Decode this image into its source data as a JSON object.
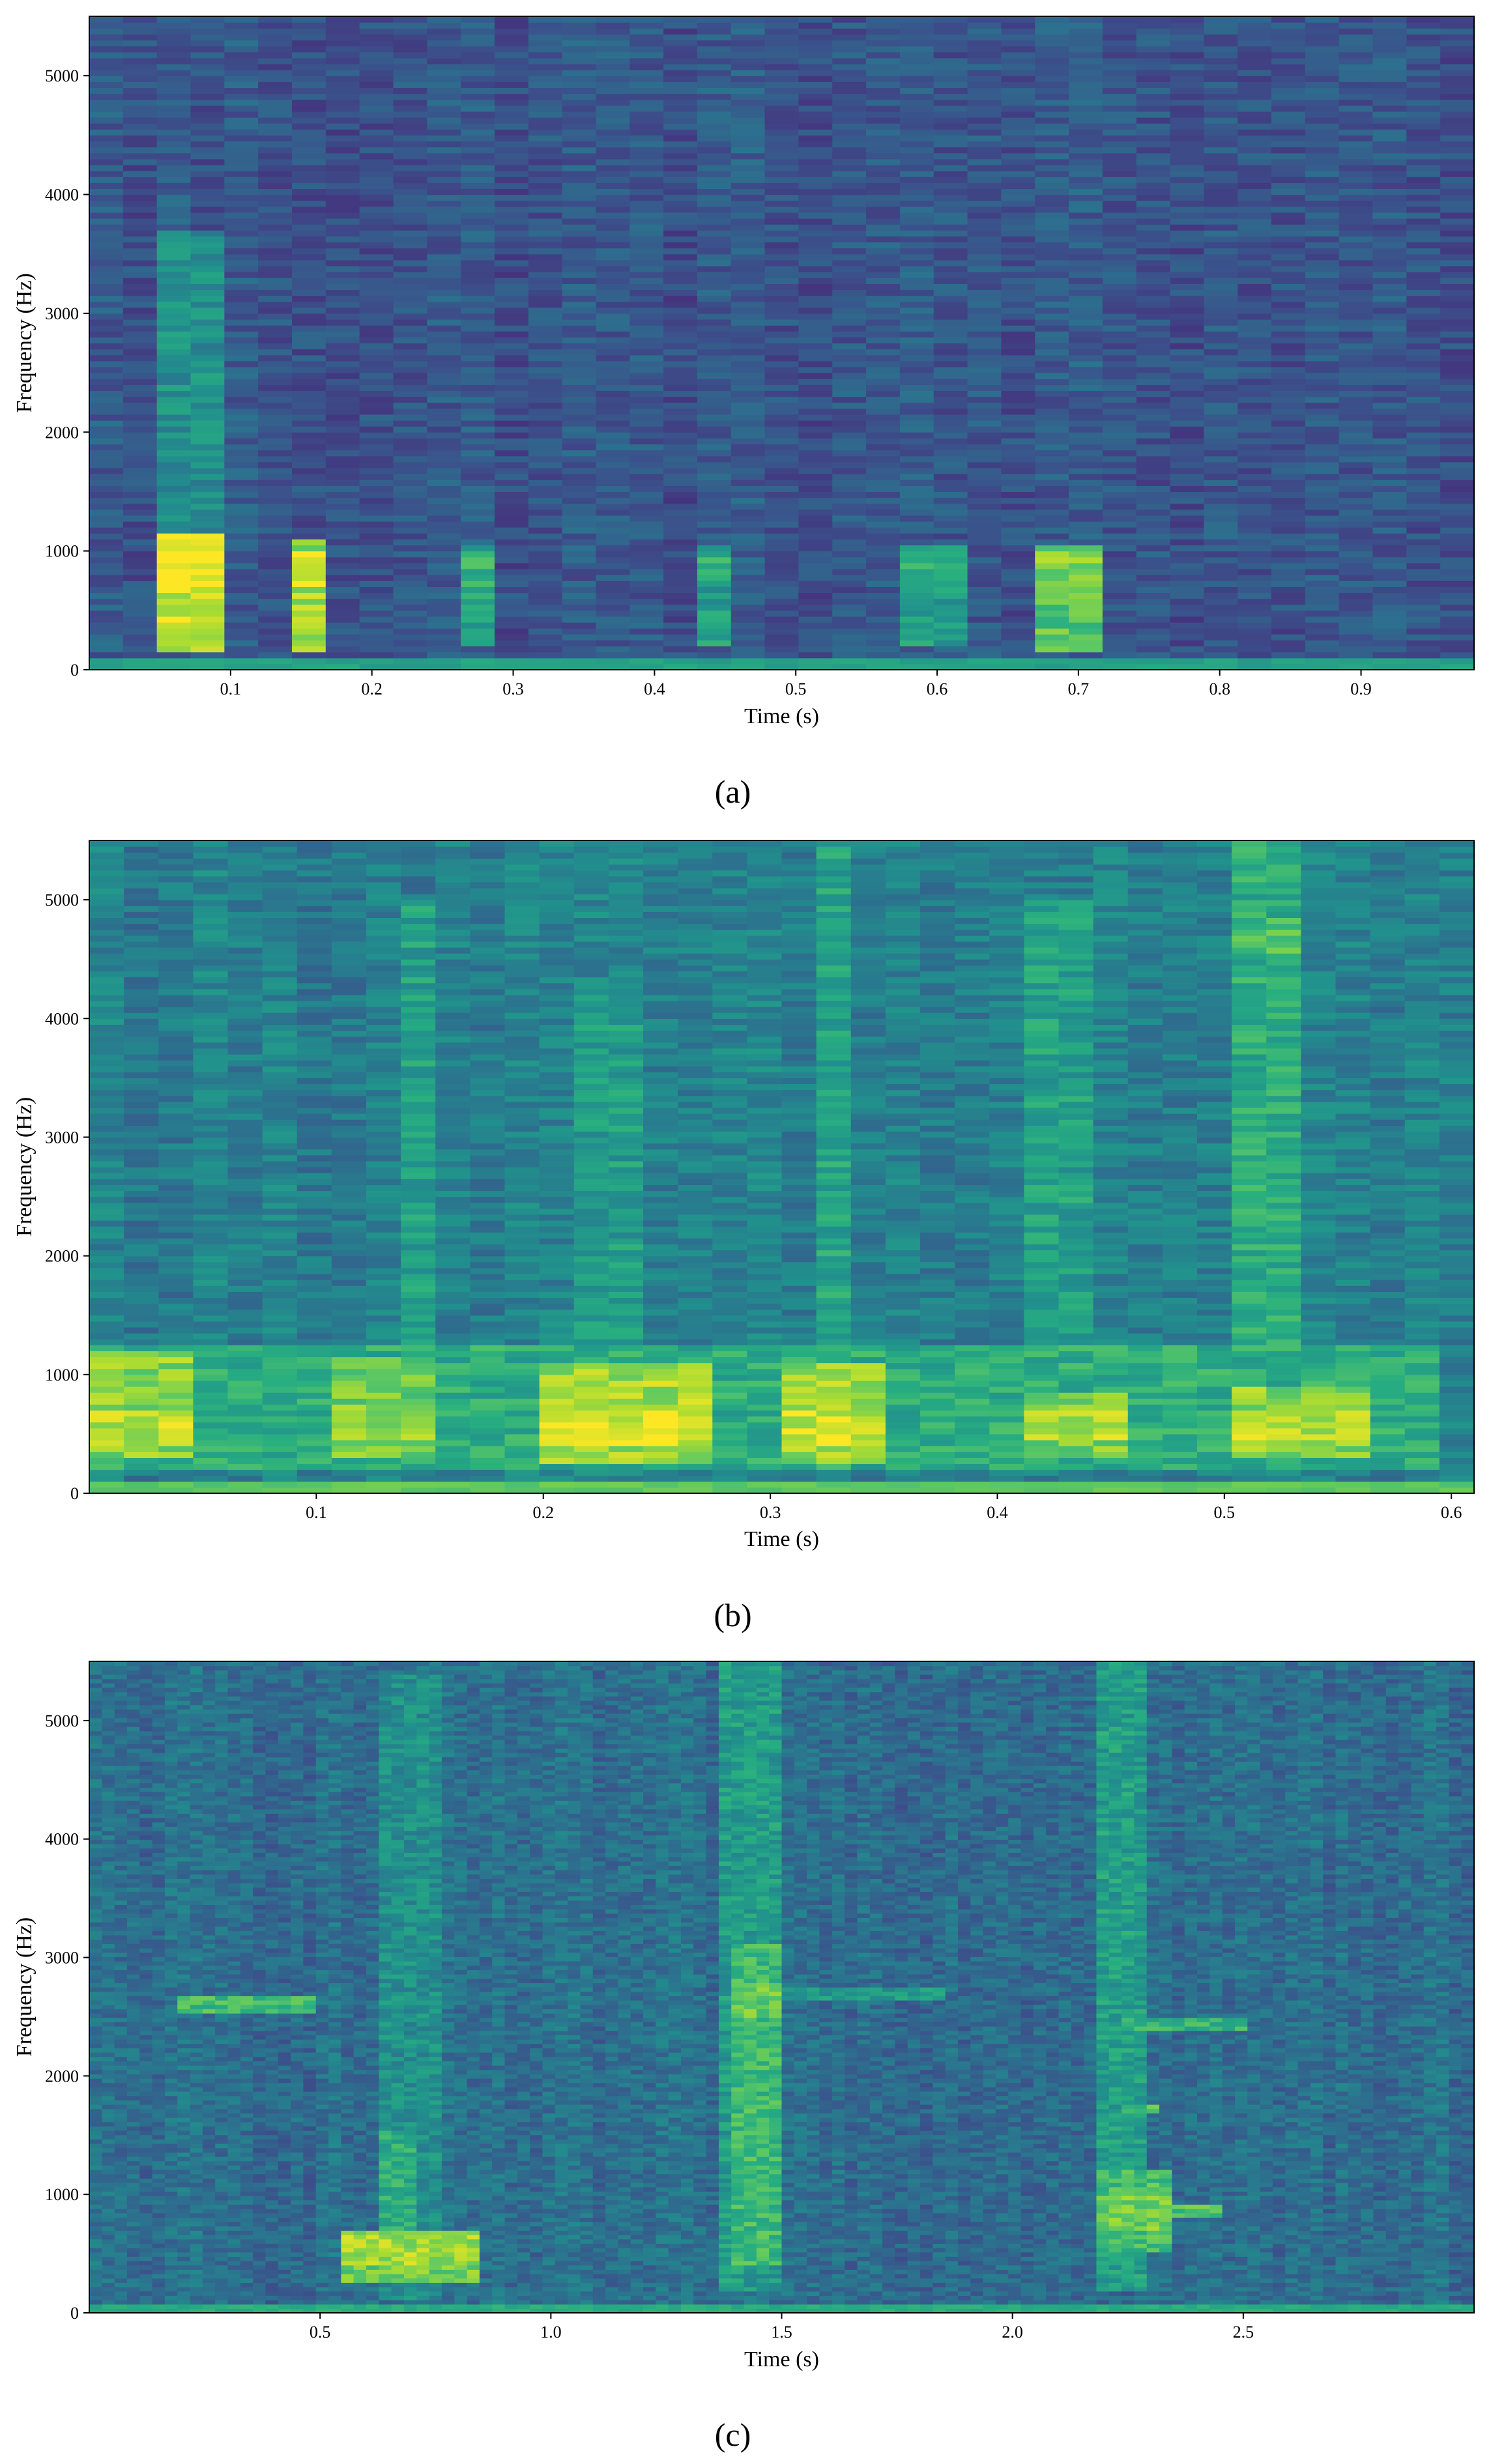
{
  "chart_data": [
    {
      "type": "heatmap",
      "panel_label": "(a)",
      "xlabel": "Time (s)",
      "ylabel": "Frequency (Hz)",
      "xlim": [
        0.0,
        0.98
      ],
      "ylim": [
        0,
        5500
      ],
      "xticks": [
        0.1,
        0.2,
        0.3,
        0.4,
        0.5,
        0.6,
        0.7,
        0.8,
        0.9
      ],
      "xtick_labels": [
        "0.1",
        "0.2",
        "0.3",
        "0.4",
        "0.5",
        "0.6",
        "0.7",
        "0.8",
        "0.9"
      ],
      "yticks": [
        0,
        1000,
        2000,
        3000,
        4000,
        5000
      ],
      "ytick_labels": [
        "0",
        "1000",
        "2000",
        "3000",
        "4000",
        "5000"
      ],
      "colormap": "viridis",
      "time_frames": 41,
      "freq_bins": 110,
      "base_intensity": 0.27,
      "low_band": {
        "max_hz": 90,
        "intensity": 0.58
      },
      "events": [
        {
          "t0": 0.055,
          "t1": 0.1,
          "f0": 150,
          "f1": 1150,
          "intensity": 0.93,
          "peak_hz": 850
        },
        {
          "t0": 0.055,
          "t1": 0.1,
          "f0": 1150,
          "f1": 3700,
          "intensity": 0.5
        },
        {
          "t0": 0.135,
          "t1": 0.16,
          "f0": 150,
          "f1": 1100,
          "intensity": 0.85,
          "peak_hz": 850
        },
        {
          "t0": 0.26,
          "t1": 0.29,
          "f0": 200,
          "f1": 1050,
          "intensity": 0.58,
          "peak_hz": 850
        },
        {
          "t0": 0.43,
          "t1": 0.46,
          "f0": 200,
          "f1": 1050,
          "intensity": 0.56,
          "peak_hz": 850
        },
        {
          "t0": 0.58,
          "t1": 0.61,
          "f0": 200,
          "f1": 1050,
          "intensity": 0.56,
          "peak_hz": 850
        },
        {
          "t0": 0.68,
          "t1": 0.71,
          "f0": 150,
          "f1": 1050,
          "intensity": 0.74,
          "peak_hz": 850
        }
      ]
    },
    {
      "type": "heatmap",
      "panel_label": "(b)",
      "xlabel": "Time (s)",
      "ylabel": "Frequency (Hz)",
      "xlim": [
        0.0,
        0.61
      ],
      "ylim": [
        0,
        5500
      ],
      "xticks": [
        0.1,
        0.2,
        0.3,
        0.4,
        0.5,
        0.6
      ],
      "xtick_labels": [
        "0.1",
        "0.2",
        "0.3",
        "0.4",
        "0.5",
        "0.6"
      ],
      "yticks": [
        0,
        1000,
        2000,
        3000,
        4000,
        5000
      ],
      "ytick_labels": [
        "0",
        "1000",
        "2000",
        "3000",
        "4000",
        "5000"
      ],
      "colormap": "viridis",
      "time_frames": 40,
      "freq_bins": 110,
      "base_intensity": 0.43,
      "low_band": {
        "max_hz": 90,
        "intensity": 0.75
      },
      "events": [
        {
          "t0": 0.0,
          "t1": 0.6,
          "f0": 200,
          "f1": 1250,
          "intensity": 0.62
        },
        {
          "t0": 0.0,
          "t1": 0.05,
          "f0": 300,
          "f1": 1200,
          "intensity": 0.82,
          "peak_hz": 550
        },
        {
          "t0": 0.1,
          "t1": 0.15,
          "f0": 300,
          "f1": 1150,
          "intensity": 0.78,
          "peak_hz": 600
        },
        {
          "t0": 0.2,
          "t1": 0.27,
          "f0": 250,
          "f1": 1100,
          "intensity": 0.86,
          "peak_hz": 550
        },
        {
          "t0": 0.3,
          "t1": 0.35,
          "f0": 250,
          "f1": 1100,
          "intensity": 0.84,
          "peak_hz": 550
        },
        {
          "t0": 0.41,
          "t1": 0.45,
          "f0": 300,
          "f1": 850,
          "intensity": 0.8,
          "peak_hz": 580
        },
        {
          "t0": 0.5,
          "t1": 0.56,
          "f0": 300,
          "f1": 900,
          "intensity": 0.82,
          "peak_hz": 580
        },
        {
          "t0": 0.13,
          "t1": 0.15,
          "f0": 1200,
          "f1": 5000,
          "intensity": 0.56
        },
        {
          "t0": 0.22,
          "t1": 0.25,
          "f0": 1200,
          "f1": 4300,
          "intensity": 0.55
        },
        {
          "t0": 0.32,
          "t1": 0.34,
          "f0": 1200,
          "f1": 5500,
          "intensity": 0.58
        },
        {
          "t0": 0.41,
          "t1": 0.44,
          "f0": 1200,
          "f1": 5000,
          "intensity": 0.57
        },
        {
          "t0": 0.51,
          "t1": 0.54,
          "f0": 1200,
          "f1": 5500,
          "intensity": 0.62,
          "peak_hz": 4700
        }
      ]
    },
    {
      "type": "heatmap",
      "panel_label": "(c)",
      "xlabel": "Time (s)",
      "ylabel": "Frequency (Hz)",
      "xlim": [
        0.0,
        3.0
      ],
      "ylim": [
        0,
        5500
      ],
      "xticks": [
        0.5,
        1.0,
        1.5,
        2.0,
        2.5
      ],
      "xtick_labels": [
        "0.5",
        "1.0",
        "1.5",
        "2.0",
        "2.5"
      ],
      "yticks": [
        0,
        1000,
        2000,
        3000,
        4000,
        5000
      ],
      "ytick_labels": [
        "0",
        "1000",
        "2000",
        "3000",
        "4000",
        "5000"
      ],
      "colormap": "viridis",
      "time_frames": 110,
      "freq_bins": 150,
      "base_intensity": 0.36,
      "low_band": {
        "max_hz": 70,
        "intensity": 0.62
      },
      "events": [
        {
          "t0": 0.62,
          "t1": 0.75,
          "f0": 100,
          "f1": 5400,
          "intensity": 0.5
        },
        {
          "t0": 0.55,
          "t1": 0.85,
          "f0": 250,
          "f1": 700,
          "intensity": 0.78,
          "peak_hz": 550
        },
        {
          "t0": 0.62,
          "t1": 0.72,
          "f0": 700,
          "f1": 1550,
          "intensity": 0.62
        },
        {
          "t0": 0.2,
          "t1": 0.5,
          "f0": 2540,
          "f1": 2660,
          "intensity": 0.68
        },
        {
          "t0": 1.37,
          "t1": 1.51,
          "f0": 200,
          "f1": 5500,
          "intensity": 0.55
        },
        {
          "t0": 1.38,
          "t1": 1.5,
          "f0": 400,
          "f1": 3100,
          "intensity": 0.68,
          "peak_hz": 2650
        },
        {
          "t0": 1.5,
          "t1": 1.85,
          "f0": 2640,
          "f1": 2760,
          "intensity": 0.55
        },
        {
          "t0": 2.17,
          "t1": 2.3,
          "f0": 200,
          "f1": 5500,
          "intensity": 0.56
        },
        {
          "t0": 2.17,
          "t1": 2.35,
          "f0": 500,
          "f1": 1200,
          "intensity": 0.7,
          "peak_hz": 850
        },
        {
          "t0": 2.3,
          "t1": 2.45,
          "f0": 800,
          "f1": 900,
          "intensity": 0.72
        },
        {
          "t0": 2.25,
          "t1": 2.5,
          "f0": 2380,
          "f1": 2480,
          "intensity": 0.66
        },
        {
          "t0": 2.25,
          "t1": 2.32,
          "f0": 1680,
          "f1": 1760,
          "intensity": 0.7
        }
      ]
    }
  ]
}
